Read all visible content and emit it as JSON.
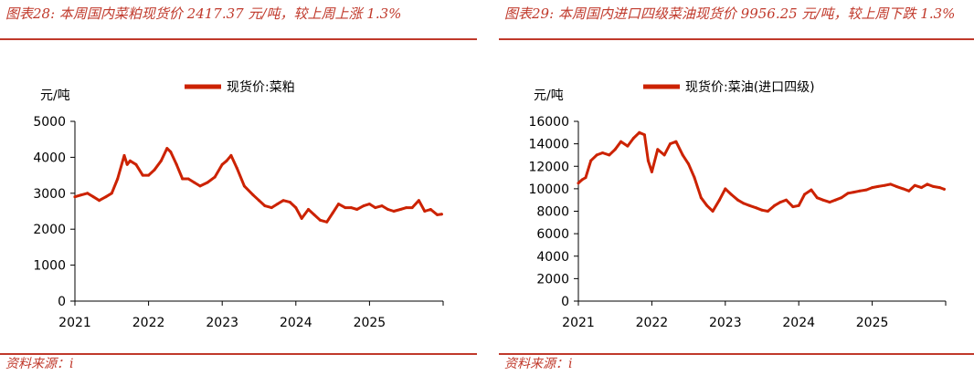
{
  "colors": {
    "accent": "#c0392b",
    "series": "#cc2200"
  },
  "left": {
    "caption": "图表28:  本周国内菜粕现货价 2417.37 元/吨，较上周上涨 1.3%",
    "source": "资料来源：i",
    "chart_data": {
      "type": "line",
      "unit": "元/吨",
      "legend": [
        "现货价:菜粕"
      ],
      "legend_position": "top-center",
      "grid": false,
      "xlim": [
        2021.0,
        2026.0
      ],
      "ylim": [
        0,
        5000
      ],
      "xticks": [
        "2021",
        "2022",
        "2023",
        "2024",
        "2025"
      ],
      "yticks": [
        "0",
        "1000",
        "2000",
        "3000",
        "4000",
        "5000"
      ],
      "series": [
        {
          "name": "现货价:菜粕",
          "x": [
            2021.0,
            2021.08,
            2021.17,
            2021.25,
            2021.33,
            2021.42,
            2021.5,
            2021.58,
            2021.67,
            2021.71,
            2021.75,
            2021.83,
            2021.92,
            2022.0,
            2022.08,
            2022.17,
            2022.25,
            2022.3,
            2022.38,
            2022.46,
            2022.54,
            2022.62,
            2022.7,
            2022.8,
            2022.9,
            2023.0,
            2023.06,
            2023.12,
            2023.2,
            2023.3,
            2023.42,
            2023.5,
            2023.58,
            2023.67,
            2023.75,
            2023.83,
            2023.92,
            2024.0,
            2024.08,
            2024.17,
            2024.25,
            2024.33,
            2024.42,
            2024.5,
            2024.58,
            2024.67,
            2024.75,
            2024.83,
            2024.92,
            2025.0,
            2025.08,
            2025.17,
            2025.25,
            2025.33,
            2025.42,
            2025.5,
            2025.58,
            2025.67,
            2025.75,
            2025.83,
            2025.92,
            2025.98
          ],
          "y": [
            2900,
            2950,
            3000,
            2900,
            2800,
            2900,
            3000,
            3400,
            4050,
            3800,
            3900,
            3800,
            3500,
            3500,
            3650,
            3900,
            4250,
            4150,
            3800,
            3400,
            3400,
            3300,
            3200,
            3300,
            3450,
            3800,
            3900,
            4050,
            3700,
            3200,
            2950,
            2800,
            2650,
            2600,
            2700,
            2800,
            2750,
            2600,
            2300,
            2550,
            2400,
            2250,
            2200,
            2450,
            2700,
            2600,
            2600,
            2550,
            2650,
            2700,
            2600,
            2650,
            2550,
            2500,
            2550,
            2600,
            2600,
            2800,
            2500,
            2550,
            2400,
            2417
          ]
        }
      ]
    }
  },
  "right": {
    "caption": "图表29:  本周国内进口四级菜油现货价 9956.25 元/吨，较上周下跌 1.3%",
    "source": "资料来源：i",
    "chart_data": {
      "type": "line",
      "unit": "元/吨",
      "legend": [
        "现货价:菜油(进口四级)"
      ],
      "legend_position": "top-center",
      "grid": false,
      "xlim": [
        2021.0,
        2026.0
      ],
      "ylim": [
        0,
        16000
      ],
      "xticks": [
        "2021",
        "2022",
        "2023",
        "2024",
        "2025"
      ],
      "yticks": [
        "0",
        "2000",
        "4000",
        "6000",
        "8000",
        "10000",
        "12000",
        "14000",
        "16000"
      ],
      "series": [
        {
          "name": "现货价:菜油(进口四级)",
          "x": [
            2021.0,
            2021.05,
            2021.1,
            2021.17,
            2021.25,
            2021.33,
            2021.42,
            2021.5,
            2021.58,
            2021.67,
            2021.75,
            2021.83,
            2021.9,
            2021.95,
            2022.0,
            2022.08,
            2022.17,
            2022.25,
            2022.33,
            2022.42,
            2022.5,
            2022.58,
            2022.67,
            2022.75,
            2022.83,
            2022.92,
            2023.0,
            2023.08,
            2023.17,
            2023.25,
            2023.33,
            2023.42,
            2023.5,
            2023.58,
            2023.67,
            2023.75,
            2023.83,
            2023.92,
            2024.0,
            2024.08,
            2024.17,
            2024.25,
            2024.33,
            2024.42,
            2024.5,
            2024.58,
            2024.67,
            2024.75,
            2024.83,
            2024.92,
            2025.0,
            2025.08,
            2025.17,
            2025.25,
            2025.33,
            2025.42,
            2025.5,
            2025.58,
            2025.67,
            2025.75,
            2025.83,
            2025.92,
            2025.98
          ],
          "y": [
            10500,
            10800,
            11000,
            12500,
            13000,
            13200,
            13000,
            13500,
            14200,
            13800,
            14500,
            15000,
            14800,
            12500,
            11500,
            13500,
            13000,
            14000,
            14200,
            13000,
            12200,
            11000,
            9200,
            8500,
            8000,
            9000,
            10000,
            9500,
            9000,
            8700,
            8500,
            8300,
            8100,
            8000,
            8500,
            8800,
            9000,
            8400,
            8500,
            9500,
            9900,
            9200,
            9000,
            8800,
            9000,
            9200,
            9600,
            9700,
            9800,
            9900,
            10100,
            10200,
            10300,
            10400,
            10200,
            10000,
            9800,
            10300,
            10100,
            10400,
            10200,
            10100,
            9956
          ]
        }
      ]
    }
  }
}
